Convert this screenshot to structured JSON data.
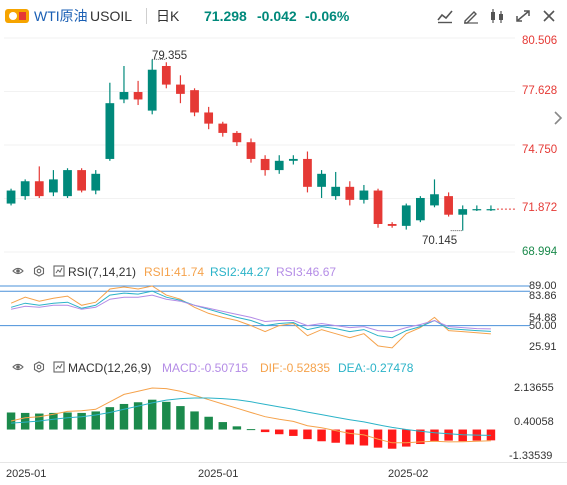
{
  "header": {
    "title": "WTI原油",
    "symbol": "USOIL",
    "timeframe": "日K",
    "last": "71.298",
    "change": "-0.042",
    "change_pct": "-0.06%",
    "up_color": "#00897b",
    "down_color": "#e53935"
  },
  "toolbar": {
    "icons": [
      "indicator-icon",
      "draw-icon",
      "compare-icon",
      "fullscreen-icon",
      "close-icon"
    ]
  },
  "price_panel": {
    "axis_labels": [
      "80.506",
      "77.628",
      "74.750",
      "71.872",
      "68.994"
    ],
    "high_marker": "79.355",
    "low_marker": "70.145",
    "current_price_line": 71.298
  },
  "chart_data": [
    {
      "type": "candlestick",
      "name": "USOIL 日K",
      "ylim": [
        68.994,
        80.506
      ],
      "axis_ticks": [
        80.506,
        77.628,
        74.75,
        71.872,
        68.994
      ],
      "x": [
        "2024-12-31",
        "2025-01-02",
        "2025-01-03",
        "2025-01-06",
        "2025-01-07",
        "2025-01-08",
        "2025-01-09",
        "2025-01-10",
        "2025-01-13",
        "2025-01-14",
        "2025-01-15",
        "2025-01-16",
        "2025-01-17",
        "2025-01-20",
        "2025-01-21",
        "2025-01-22",
        "2025-01-23",
        "2025-01-24",
        "2025-01-27",
        "2025-01-28",
        "2025-01-29",
        "2025-01-30",
        "2025-01-31",
        "2025-02-03",
        "2025-02-04",
        "2025-02-05",
        "2025-02-06",
        "2025-02-07",
        "2025-02-10",
        "2025-02-11",
        "2025-02-12",
        "2025-02-13",
        "2025-02-14",
        "2025-02-17",
        "2025-02-18"
      ],
      "open": [
        71.6,
        72.0,
        72.8,
        72.2,
        72.0,
        73.4,
        72.3,
        74.0,
        77.2,
        77.6,
        76.6,
        79.0,
        78.0,
        77.7,
        76.5,
        75.9,
        75.4,
        74.9,
        74.0,
        73.4,
        73.9,
        74.0,
        72.5,
        72.0,
        72.5,
        71.8,
        72.3,
        70.5,
        70.4,
        70.7,
        71.5,
        72.0,
        71.0,
        71.3,
        71.3
      ],
      "close": [
        72.3,
        72.8,
        72.0,
        72.9,
        73.4,
        72.3,
        73.2,
        77.0,
        77.6,
        77.2,
        78.8,
        78.0,
        77.5,
        76.5,
        75.9,
        75.4,
        74.9,
        74.0,
        73.4,
        73.9,
        74.0,
        72.5,
        73.2,
        72.5,
        71.8,
        72.3,
        70.5,
        70.4,
        71.5,
        71.9,
        72.1,
        71.0,
        71.3,
        71.3,
        71.3
      ],
      "high": [
        72.4,
        72.9,
        73.6,
        73.4,
        73.5,
        73.5,
        73.4,
        78.1,
        79.0,
        78.2,
        79.355,
        79.2,
        78.5,
        77.8,
        76.8,
        76.0,
        75.5,
        75.1,
        74.2,
        74.2,
        74.2,
        74.4,
        73.4,
        73.3,
        72.8,
        72.6,
        72.4,
        70.6,
        71.6,
        72.0,
        72.9,
        72.2,
        71.5,
        71.5,
        71.5
      ],
      "low": [
        71.5,
        71.8,
        71.9,
        72.0,
        71.9,
        72.2,
        72.1,
        73.9,
        77.0,
        76.9,
        76.4,
        77.8,
        77.0,
        76.3,
        75.6,
        75.2,
        74.7,
        73.8,
        73.1,
        73.2,
        73.7,
        72.2,
        71.9,
        71.8,
        71.5,
        71.6,
        70.3,
        70.3,
        70.2,
        70.6,
        71.4,
        70.9,
        70.145,
        71.2,
        71.2
      ]
    },
    {
      "type": "line",
      "name": "RSI(7,14,21)",
      "ylim": [
        25.91,
        89.0
      ],
      "axis_ticks": [
        89.0,
        83.86,
        54.88,
        50.0,
        25.91
      ],
      "reference_lines": [
        83.86,
        50.0
      ],
      "series": [
        {
          "name": "RSI1",
          "legend": "RSI1:41.74",
          "color": "#f5a24b",
          "values": [
            72,
            78,
            74,
            77,
            79,
            70,
            73,
            86,
            88,
            86,
            89,
            80,
            76,
            68,
            62,
            58,
            55,
            50,
            44,
            50,
            52,
            40,
            46,
            42,
            38,
            42,
            30,
            28,
            42,
            48,
            58,
            45,
            44,
            43,
            41.74
          ]
        },
        {
          "name": "RSI2",
          "legend": "RSI2:44.27",
          "color": "#2bb3c8",
          "values": [
            68,
            72,
            70,
            72,
            73,
            67,
            70,
            80,
            82,
            81,
            84,
            78,
            75,
            70,
            66,
            62,
            58,
            55,
            50,
            52,
            53,
            46,
            49,
            47,
            44,
            46,
            40,
            38,
            45,
            49,
            55,
            47,
            46,
            45,
            44.27
          ]
        },
        {
          "name": "RSI3",
          "legend": "RSI3:46.67",
          "color": "#b48ce6",
          "values": [
            66,
            69,
            68,
            70,
            70,
            66,
            68,
            76,
            78,
            78,
            80,
            76,
            74,
            70,
            67,
            64,
            61,
            58,
            54,
            55,
            55,
            50,
            52,
            50,
            48,
            49,
            45,
            44,
            48,
            51,
            55,
            49,
            48,
            47,
            46.67
          ]
        }
      ]
    },
    {
      "type": "bar",
      "name": "MACD(12,26,9)",
      "ylim": [
        -1.33539,
        2.13655
      ],
      "axis_ticks": [
        2.13655,
        0.40058,
        -1.33539
      ],
      "series": [
        {
          "name": "MACD",
          "legend": "MACD:-0.50715",
          "color_pos": "#1b8a4c",
          "color_neg": "#ff1a1a",
          "values": [
            0.8,
            0.78,
            0.75,
            0.78,
            0.8,
            0.78,
            0.85,
            1.05,
            1.2,
            1.28,
            1.4,
            1.3,
            1.1,
            0.85,
            0.6,
            0.35,
            0.15,
            0.02,
            -0.12,
            -0.22,
            -0.3,
            -0.45,
            -0.55,
            -0.62,
            -0.7,
            -0.75,
            -0.85,
            -0.9,
            -0.8,
            -0.68,
            -0.55,
            -0.52,
            -0.55,
            -0.52,
            -0.50715
          ]
        },
        {
          "name": "DIF",
          "legend": "DIF:-0.52835",
          "color": "#f5a24b",
          "values": [
            0.4,
            0.55,
            0.6,
            0.72,
            0.85,
            0.88,
            0.95,
            1.3,
            1.65,
            1.8,
            1.95,
            1.92,
            1.8,
            1.6,
            1.4,
            1.2,
            1.0,
            0.8,
            0.6,
            0.48,
            0.38,
            0.18,
            0.08,
            -0.05,
            -0.18,
            -0.25,
            -0.45,
            -0.62,
            -0.62,
            -0.58,
            -0.55,
            -0.58,
            -0.57,
            -0.55,
            -0.52835
          ]
        },
        {
          "name": "DEA",
          "legend": "DEA:-0.27478",
          "color": "#2bb3c8",
          "values": [
            0.3,
            0.35,
            0.4,
            0.48,
            0.55,
            0.6,
            0.68,
            0.8,
            0.95,
            1.1,
            1.25,
            1.38,
            1.45,
            1.48,
            1.48,
            1.45,
            1.4,
            1.3,
            1.18,
            1.06,
            0.95,
            0.82,
            0.7,
            0.58,
            0.46,
            0.36,
            0.22,
            0.1,
            0.0,
            -0.08,
            -0.15,
            -0.2,
            -0.24,
            -0.26,
            -0.27478
          ]
        }
      ]
    }
  ],
  "rsi_panel": {
    "label": "RSI(7,14,21)",
    "rsi1": "RSI1:41.74",
    "rsi2": "RSI2:44.27",
    "rsi3": "RSI3:46.67",
    "axis_labels": [
      "89.00",
      "83.86",
      "54.88",
      "50.00",
      "25.91"
    ]
  },
  "macd_panel": {
    "label": "MACD(12,26,9)",
    "macd": "MACD:-0.50715",
    "dif": "DIF:-0.52835",
    "dea": "DEA:-0.27478",
    "axis_labels": [
      "2.13655",
      "0.40058",
      "-1.33539"
    ]
  },
  "x_axis": {
    "labels": [
      "2025-01",
      "2025-01",
      "2025-02"
    ]
  }
}
